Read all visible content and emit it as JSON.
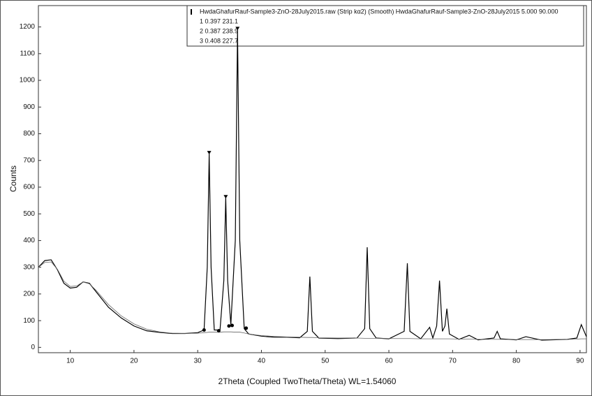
{
  "chart_data": {
    "type": "line",
    "ylabel": "Counts",
    "xlabel": "2Theta (Coupled TwoTheta/Theta) WL=1.54060",
    "legend": {
      "title": "HwdaGhafurRauf-Sample3-ZnO-28July2015.raw (Strip kα2) (Smooth) HwdaGhafurRauf-Sample3-ZnO-28July2015 5.000 90.000",
      "rows": [
        "1 0.397 231.1",
        "2 0.387 238.9",
        "3 0.408 227.7"
      ],
      "position": "upper right"
    },
    "xlim": [
      5,
      91
    ],
    "ylim": [
      -20,
      1280
    ],
    "xticks": [
      10,
      20,
      30,
      40,
      50,
      60,
      70,
      80,
      90
    ],
    "yticks": [
      0,
      100,
      200,
      300,
      400,
      500,
      600,
      700,
      800,
      900,
      1000,
      1100,
      1200
    ],
    "x": [
      5,
      6,
      7,
      8,
      9,
      10,
      11,
      12,
      13,
      14,
      16,
      18,
      20,
      22,
      24,
      26,
      28,
      30,
      31,
      31.5,
      31.8,
      32.1,
      32.6,
      33.5,
      34.1,
      34.4,
      34.7,
      35.2,
      35.9,
      36.25,
      36.6,
      37.3,
      38,
      40,
      42,
      44,
      46,
      47.2,
      47.6,
      48,
      49,
      52,
      55,
      56.2,
      56.6,
      57,
      58,
      60,
      62.4,
      62.9,
      63.3,
      65,
      66.4,
      66.9,
      67.5,
      67.95,
      68.4,
      68.8,
      69.1,
      69.5,
      71,
      72.6,
      74,
      76.5,
      77,
      77.5,
      80,
      81.5,
      84,
      88,
      89.5,
      90.2,
      91
    ],
    "series": [
      {
        "color": "#000000",
        "values": [
          300,
          325,
          328,
          290,
          240,
          222,
          225,
          245,
          240,
          210,
          150,
          110,
          80,
          62,
          56,
          52,
          52,
          55,
          65,
          300,
          725,
          300,
          65,
          65,
          250,
          560,
          250,
          85,
          400,
          1190,
          400,
          70,
          50,
          42,
          38,
          38,
          36,
          60,
          265,
          60,
          35,
          33,
          35,
          70,
          375,
          70,
          35,
          32,
          60,
          315,
          60,
          32,
          75,
          35,
          80,
          250,
          60,
          80,
          145,
          50,
          30,
          45,
          28,
          35,
          60,
          32,
          28,
          40,
          27,
          30,
          35,
          85,
          40
        ]
      },
      {
        "color": "#666666",
        "values": [
          300,
          318,
          320,
          292,
          248,
          228,
          230,
          245,
          238,
          215,
          160,
          118,
          88,
          68,
          58,
          53,
          52,
          53,
          55,
          56,
          57,
          57,
          57,
          57,
          58,
          58,
          58,
          58,
          57,
          57,
          57,
          54,
          50,
          44,
          41,
          39,
          38,
          37,
          37,
          37,
          36,
          35,
          35,
          34,
          34,
          34,
          34,
          33,
          33,
          33,
          33,
          32,
          32,
          32,
          32,
          32,
          32,
          32,
          32,
          32,
          31,
          31,
          30,
          30,
          30,
          30,
          29,
          29,
          29,
          30,
          31,
          32,
          32
        ]
      }
    ],
    "peak_markers": {
      "x": [
        31.8,
        34.4,
        36.25
      ],
      "values": [
        725,
        560,
        1190
      ]
    },
    "base_markers": {
      "x": [
        31.0,
        33.3,
        34.9,
        35.4,
        37.6
      ],
      "values": [
        65,
        62,
        80,
        82,
        72
      ]
    }
  }
}
